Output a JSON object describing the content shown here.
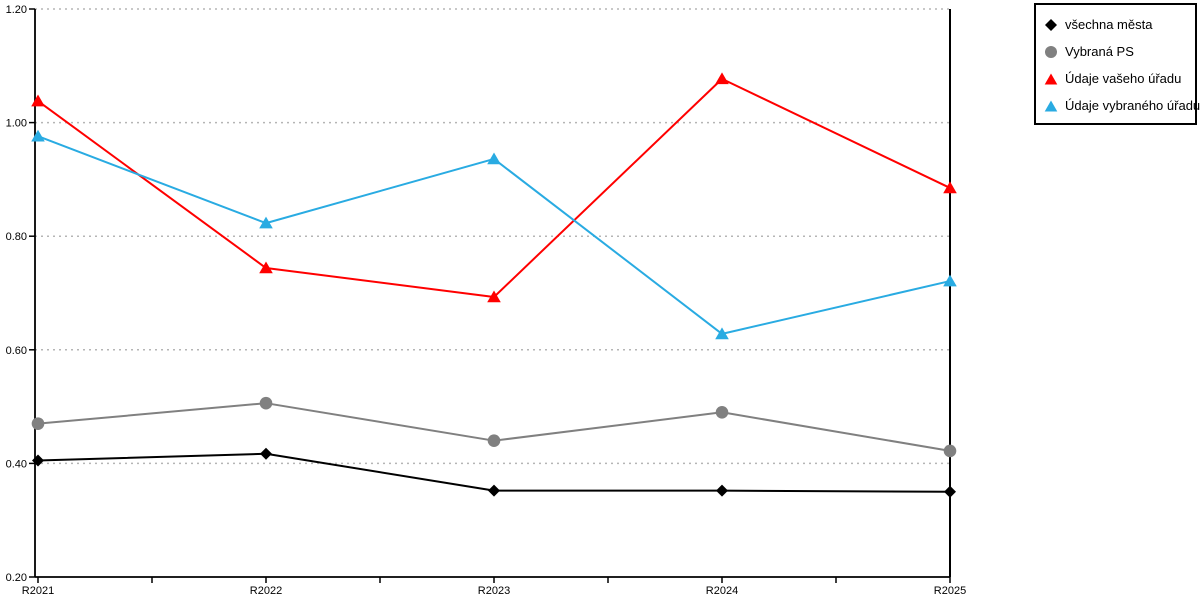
{
  "chart_data": {
    "type": "line",
    "title": "",
    "xlabel": "",
    "ylabel": "",
    "categories": [
      "R2021",
      "R2022",
      "R2023",
      "R2024",
      "R2025"
    ],
    "series": [
      {
        "name": "všechna města",
        "marker": "diamond",
        "color": "#000000",
        "values": [
          0.405,
          0.417,
          0.352,
          0.352,
          0.35
        ]
      },
      {
        "name": "Vybraná PS",
        "marker": "circle",
        "color": "#808080",
        "values": [
          0.47,
          0.506,
          0.44,
          0.49,
          0.422
        ]
      },
      {
        "name": "Údaje vašeho úřadu",
        "marker": "triangle",
        "color": "#FF0000",
        "values": [
          1.038,
          0.744,
          0.693,
          1.077,
          0.885
        ]
      },
      {
        "name": "Údaje vybraného úřadu",
        "marker": "triangle",
        "color": "#29ABE2",
        "values": [
          0.976,
          0.823,
          0.936,
          0.628,
          0.721
        ]
      }
    ],
    "ylim": [
      0.2,
      1.2
    ],
    "ytick_step": 0.2,
    "ytick_labels": [
      "0.20",
      "0.40",
      "0.60",
      "0.80",
      "1.00",
      "1.20"
    ],
    "grid": "horizontal-dashed",
    "gridline_color": "#b5b5b5",
    "axis_color": "#000000",
    "legend_position": "top-right"
  }
}
